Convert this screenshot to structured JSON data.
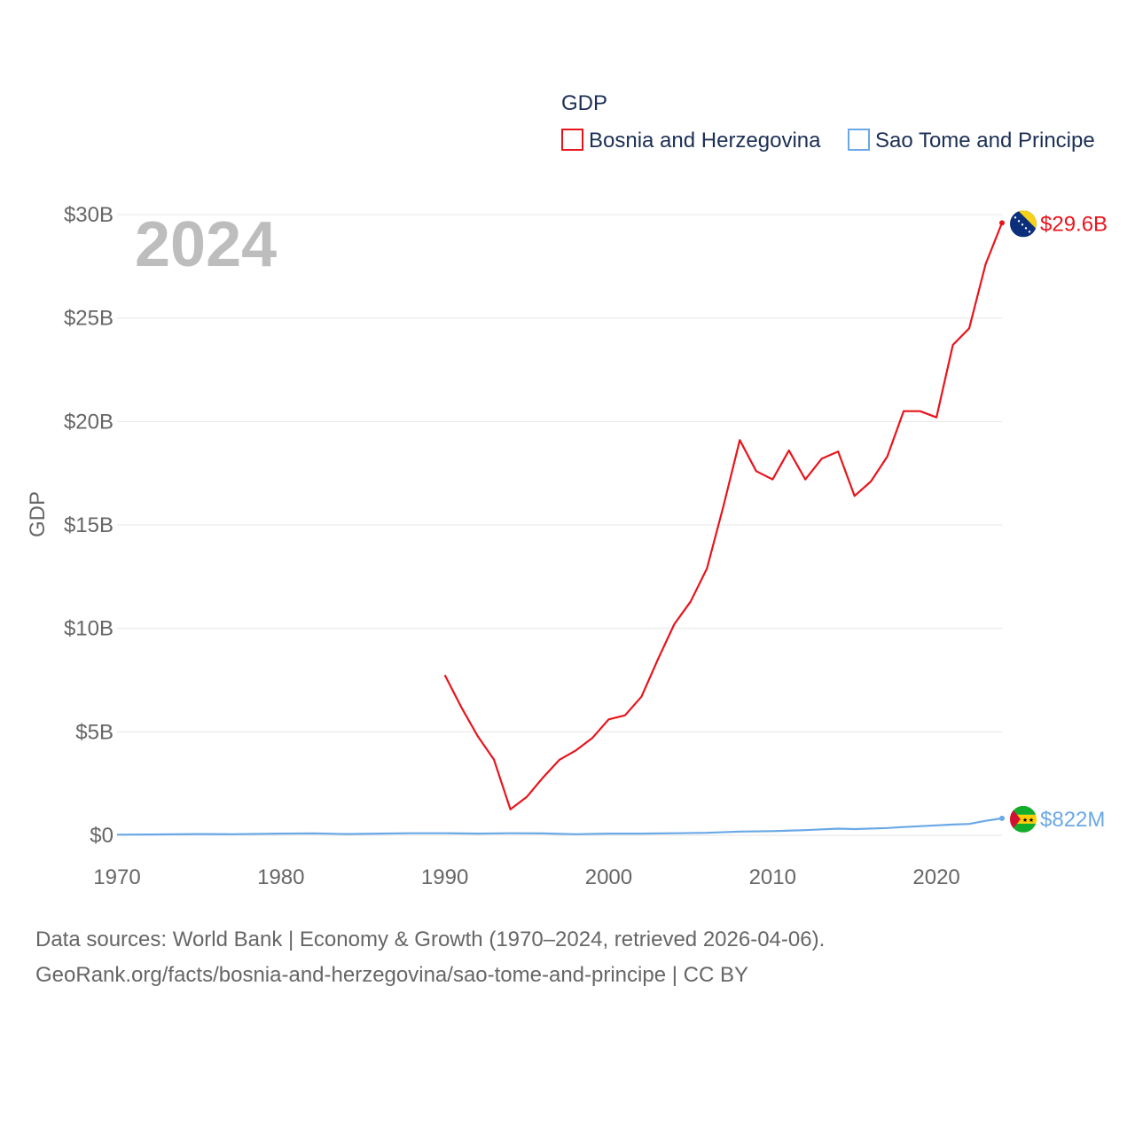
{
  "chart_data": {
    "type": "line",
    "legend_title": "GDP",
    "ylabel": "GDP",
    "current_year": "2024",
    "xlim": [
      1970,
      2024
    ],
    "ylim": [
      0,
      30
    ],
    "y_unit": "billion USD",
    "x_ticks": [
      1970,
      1980,
      1990,
      2000,
      2010,
      2020
    ],
    "y_ticks": [
      {
        "value": 0,
        "label": "$0"
      },
      {
        "value": 5,
        "label": "$5B"
      },
      {
        "value": 10,
        "label": "$10B"
      },
      {
        "value": 15,
        "label": "$15B"
      },
      {
        "value": 20,
        "label": "$20B"
      },
      {
        "value": 25,
        "label": "$25B"
      },
      {
        "value": 30,
        "label": "$30B"
      }
    ],
    "series": [
      {
        "name": "Bosnia and Herzegovina",
        "color": "#e8141c",
        "end_label": "$29.6B",
        "flag": "bosnia-flag",
        "points": [
          [
            1990,
            7.75
          ],
          [
            1991,
            6.2
          ],
          [
            1992,
            4.8
          ],
          [
            1993,
            3.65
          ],
          [
            1994,
            1.25
          ],
          [
            1995,
            1.85
          ],
          [
            1996,
            2.8
          ],
          [
            1997,
            3.65
          ],
          [
            1998,
            4.1
          ],
          [
            1999,
            4.7
          ],
          [
            2000,
            5.6
          ],
          [
            2001,
            5.8
          ],
          [
            2002,
            6.7
          ],
          [
            2003,
            8.5
          ],
          [
            2004,
            10.2
          ],
          [
            2005,
            11.3
          ],
          [
            2006,
            12.9
          ],
          [
            2007,
            15.9
          ],
          [
            2008,
            19.1
          ],
          [
            2009,
            17.6
          ],
          [
            2010,
            17.2
          ],
          [
            2011,
            18.6
          ],
          [
            2012,
            17.2
          ],
          [
            2013,
            18.2
          ],
          [
            2014,
            18.55
          ],
          [
            2015,
            16.4
          ],
          [
            2016,
            17.1
          ],
          [
            2017,
            18.3
          ],
          [
            2018,
            20.5
          ],
          [
            2019,
            20.5
          ],
          [
            2020,
            20.2
          ],
          [
            2021,
            23.7
          ],
          [
            2022,
            24.5
          ],
          [
            2023,
            27.6
          ],
          [
            2024,
            29.6
          ]
        ]
      },
      {
        "name": "Sao Tome and Principe",
        "color": "#6aa8e6",
        "end_label": "$822M",
        "flag": "sao-tome-flag",
        "points": [
          [
            1970,
            0.03
          ],
          [
            1972,
            0.04
          ],
          [
            1975,
            0.06
          ],
          [
            1977,
            0.05
          ],
          [
            1980,
            0.08
          ],
          [
            1982,
            0.09
          ],
          [
            1984,
            0.06
          ],
          [
            1986,
            0.08
          ],
          [
            1988,
            0.1
          ],
          [
            1990,
            0.1
          ],
          [
            1992,
            0.08
          ],
          [
            1994,
            0.1
          ],
          [
            1996,
            0.09
          ],
          [
            1998,
            0.05
          ],
          [
            2000,
            0.08
          ],
          [
            2002,
            0.08
          ],
          [
            2004,
            0.1
          ],
          [
            2006,
            0.12
          ],
          [
            2008,
            0.18
          ],
          [
            2010,
            0.2
          ],
          [
            2012,
            0.25
          ],
          [
            2014,
            0.32
          ],
          [
            2015,
            0.3
          ],
          [
            2017,
            0.35
          ],
          [
            2018,
            0.4
          ],
          [
            2020,
            0.48
          ],
          [
            2021,
            0.52
          ],
          [
            2022,
            0.55
          ],
          [
            2023,
            0.7
          ],
          [
            2024,
            0.82
          ]
        ]
      }
    ]
  },
  "footer": {
    "line1": "Data sources: World Bank | Economy & Growth (1970–2024, retrieved 2026-04-06).",
    "line2": "GeoRank.org/facts/bosnia-and-herzegovina/sao-tome-and-principe | CC BY"
  }
}
